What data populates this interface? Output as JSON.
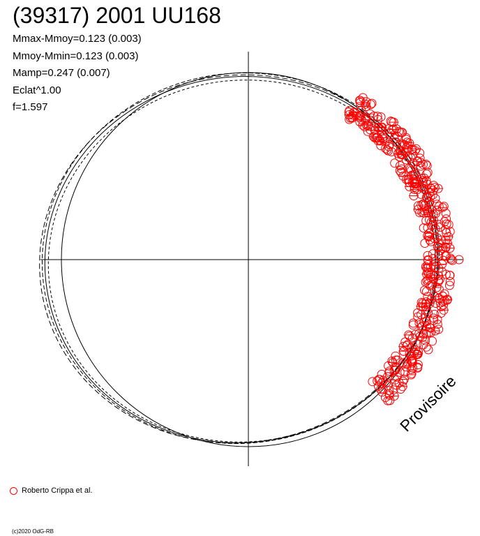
{
  "title": "(39317) 2001 UU168",
  "stats": [
    "Mmax-Mmoy=0.123 (0.003)",
    "Mmoy-Mmin=0.123 (0.003)",
    "Mamp=0.247 (0.007)",
    "Eclat^1.00",
    "f=1.597"
  ],
  "legend": {
    "label": "Roberto Crippa et al.",
    "color": "#ff0000"
  },
  "copyright": "(c)2020 OdG-RB",
  "watermark": "Provisoire",
  "chart_data": {
    "type": "polar-lightcurve",
    "title": "(39317) 2001 UU168",
    "grid": false,
    "axes": "crosshair",
    "reference_circle": true,
    "fit_color": "#000000",
    "series": [
      {
        "name": "Roberto Crippa et al.",
        "marker": "open-circle",
        "color": "#ff0000",
        "point_count": 420
      }
    ]
  }
}
